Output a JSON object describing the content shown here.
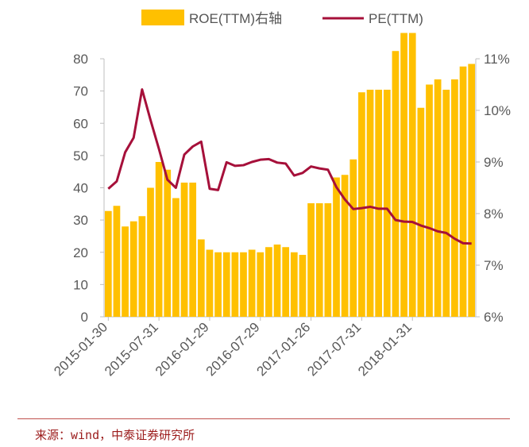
{
  "chart_data": {
    "type": "bar",
    "title": "",
    "xlabel": "",
    "ylabel": "",
    "legend": {
      "position": "top",
      "items": [
        {
          "label": "ROE(TTM)右轴",
          "marker": "bar"
        },
        {
          "label": "PE(TTM)",
          "marker": "line"
        }
      ]
    },
    "x_tick_labels": [
      "2015-01-30",
      "2015-07-31",
      "2016-01-29",
      "2016-07-29",
      "2017-01-26",
      "2017-07-31",
      "2018-01-31"
    ],
    "y_left": {
      "ticks": [
        "0",
        "10",
        "20",
        "30",
        "40",
        "50",
        "60",
        "70",
        "80"
      ],
      "range": [
        0,
        80
      ]
    },
    "y_right": {
      "ticks": [
        "6%",
        "7%",
        "8%",
        "9%",
        "10%",
        "11%"
      ],
      "range": [
        6,
        11
      ],
      "unit": "%"
    },
    "series": [
      {
        "name": "ROE(TTM)右轴",
        "type": "bar",
        "axis": "right",
        "color": "#ffc000",
        "values": [
          8.05,
          8.15,
          7.75,
          7.85,
          7.95,
          8.5,
          9.0,
          8.85,
          8.3,
          8.6,
          8.6,
          7.5,
          7.3,
          7.25,
          7.25,
          7.25,
          7.25,
          7.3,
          7.25,
          7.35,
          7.4,
          7.35,
          7.25,
          7.2,
          8.2,
          8.2,
          8.2,
          8.7,
          8.75,
          9.05,
          10.35,
          10.4,
          10.4,
          10.4,
          11.15,
          11.5,
          11.5,
          10.05,
          10.5,
          10.6,
          10.4,
          10.6,
          10.85,
          10.9
        ]
      },
      {
        "name": "PE(TTM)",
        "type": "line",
        "axis": "left",
        "color": "#a6103a",
        "values": [
          39.7,
          42,
          51,
          55.5,
          70.5,
          61,
          52,
          42.5,
          40,
          50.3,
          52.8,
          54.3,
          39.7,
          39.3,
          47.9,
          46.8,
          47,
          48,
          48.7,
          48.9,
          47.8,
          47.5,
          43.8,
          44.6,
          46.6,
          46,
          45.6,
          40.2,
          36.4,
          33.4,
          33.7,
          34.1,
          33.5,
          33.5,
          30,
          29.5,
          29.4,
          28.3,
          27.5,
          26.5,
          26.0,
          24.2,
          22.8,
          22.7
        ]
      }
    ]
  },
  "source": "来源：wind，中泰证券研究所"
}
